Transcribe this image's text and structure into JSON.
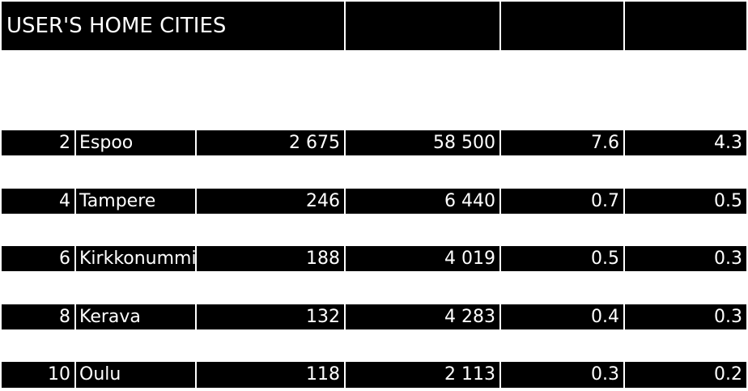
{
  "sheet": {
    "title": "USER'S HOME CITIES",
    "rows": [
      {
        "rank": "2",
        "city": "Espoo",
        "users": "2 675",
        "population": "58 500",
        "col4": "7.6",
        "col5": "4.3"
      },
      {
        "rank": "4",
        "city": "Tampere",
        "users": "246",
        "population": "6 440",
        "col4": "0.7",
        "col5": "0.5"
      },
      {
        "rank": "6",
        "city": "Kirkkonummi",
        "users": "188",
        "population": "4 019",
        "col4": "0.5",
        "col5": "0.3"
      },
      {
        "rank": "8",
        "city": "Kerava",
        "users": "132",
        "population": "4 283",
        "col4": "0.4",
        "col5": "0.3"
      },
      {
        "rank": "10",
        "city": "Oulu",
        "users": "118",
        "population": "2 113",
        "col4": "0.3",
        "col5": "0.2"
      }
    ]
  },
  "colors": {
    "cell_background": "#000000",
    "cell_text": "#ffffff",
    "gridline": "#ffffff"
  }
}
